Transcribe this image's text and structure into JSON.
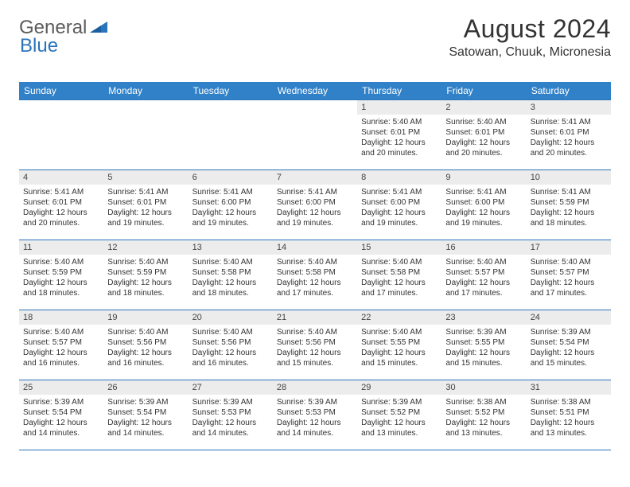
{
  "logo": {
    "text1": "General",
    "text2": "Blue"
  },
  "title": "August 2024",
  "location": "Satowan, Chuuk, Micronesia",
  "colors": {
    "header_bg": "#3081c8",
    "header_text": "#ffffff",
    "border": "#2a74bb",
    "daynum_bg": "#ececec",
    "logo_gray": "#5b5b5b",
    "logo_blue": "#2a74bb"
  },
  "dayNames": [
    "Sunday",
    "Monday",
    "Tuesday",
    "Wednesday",
    "Thursday",
    "Friday",
    "Saturday"
  ],
  "weeks": [
    [
      null,
      null,
      null,
      null,
      {
        "n": "1",
        "sr": "5:40 AM",
        "ss": "6:01 PM",
        "dl": "12 hours and 20 minutes."
      },
      {
        "n": "2",
        "sr": "5:40 AM",
        "ss": "6:01 PM",
        "dl": "12 hours and 20 minutes."
      },
      {
        "n": "3",
        "sr": "5:41 AM",
        "ss": "6:01 PM",
        "dl": "12 hours and 20 minutes."
      }
    ],
    [
      {
        "n": "4",
        "sr": "5:41 AM",
        "ss": "6:01 PM",
        "dl": "12 hours and 20 minutes."
      },
      {
        "n": "5",
        "sr": "5:41 AM",
        "ss": "6:01 PM",
        "dl": "12 hours and 19 minutes."
      },
      {
        "n": "6",
        "sr": "5:41 AM",
        "ss": "6:00 PM",
        "dl": "12 hours and 19 minutes."
      },
      {
        "n": "7",
        "sr": "5:41 AM",
        "ss": "6:00 PM",
        "dl": "12 hours and 19 minutes."
      },
      {
        "n": "8",
        "sr": "5:41 AM",
        "ss": "6:00 PM",
        "dl": "12 hours and 19 minutes."
      },
      {
        "n": "9",
        "sr": "5:41 AM",
        "ss": "6:00 PM",
        "dl": "12 hours and 19 minutes."
      },
      {
        "n": "10",
        "sr": "5:41 AM",
        "ss": "5:59 PM",
        "dl": "12 hours and 18 minutes."
      }
    ],
    [
      {
        "n": "11",
        "sr": "5:40 AM",
        "ss": "5:59 PM",
        "dl": "12 hours and 18 minutes."
      },
      {
        "n": "12",
        "sr": "5:40 AM",
        "ss": "5:59 PM",
        "dl": "12 hours and 18 minutes."
      },
      {
        "n": "13",
        "sr": "5:40 AM",
        "ss": "5:58 PM",
        "dl": "12 hours and 18 minutes."
      },
      {
        "n": "14",
        "sr": "5:40 AM",
        "ss": "5:58 PM",
        "dl": "12 hours and 17 minutes."
      },
      {
        "n": "15",
        "sr": "5:40 AM",
        "ss": "5:58 PM",
        "dl": "12 hours and 17 minutes."
      },
      {
        "n": "16",
        "sr": "5:40 AM",
        "ss": "5:57 PM",
        "dl": "12 hours and 17 minutes."
      },
      {
        "n": "17",
        "sr": "5:40 AM",
        "ss": "5:57 PM",
        "dl": "12 hours and 17 minutes."
      }
    ],
    [
      {
        "n": "18",
        "sr": "5:40 AM",
        "ss": "5:57 PM",
        "dl": "12 hours and 16 minutes."
      },
      {
        "n": "19",
        "sr": "5:40 AM",
        "ss": "5:56 PM",
        "dl": "12 hours and 16 minutes."
      },
      {
        "n": "20",
        "sr": "5:40 AM",
        "ss": "5:56 PM",
        "dl": "12 hours and 16 minutes."
      },
      {
        "n": "21",
        "sr": "5:40 AM",
        "ss": "5:56 PM",
        "dl": "12 hours and 15 minutes."
      },
      {
        "n": "22",
        "sr": "5:40 AM",
        "ss": "5:55 PM",
        "dl": "12 hours and 15 minutes."
      },
      {
        "n": "23",
        "sr": "5:39 AM",
        "ss": "5:55 PM",
        "dl": "12 hours and 15 minutes."
      },
      {
        "n": "24",
        "sr": "5:39 AM",
        "ss": "5:54 PM",
        "dl": "12 hours and 15 minutes."
      }
    ],
    [
      {
        "n": "25",
        "sr": "5:39 AM",
        "ss": "5:54 PM",
        "dl": "12 hours and 14 minutes."
      },
      {
        "n": "26",
        "sr": "5:39 AM",
        "ss": "5:54 PM",
        "dl": "12 hours and 14 minutes."
      },
      {
        "n": "27",
        "sr": "5:39 AM",
        "ss": "5:53 PM",
        "dl": "12 hours and 14 minutes."
      },
      {
        "n": "28",
        "sr": "5:39 AM",
        "ss": "5:53 PM",
        "dl": "12 hours and 14 minutes."
      },
      {
        "n": "29",
        "sr": "5:39 AM",
        "ss": "5:52 PM",
        "dl": "12 hours and 13 minutes."
      },
      {
        "n": "30",
        "sr": "5:38 AM",
        "ss": "5:52 PM",
        "dl": "12 hours and 13 minutes."
      },
      {
        "n": "31",
        "sr": "5:38 AM",
        "ss": "5:51 PM",
        "dl": "12 hours and 13 minutes."
      }
    ]
  ],
  "labels": {
    "sunrise": "Sunrise: ",
    "sunset": "Sunset: ",
    "daylight": "Daylight: "
  }
}
